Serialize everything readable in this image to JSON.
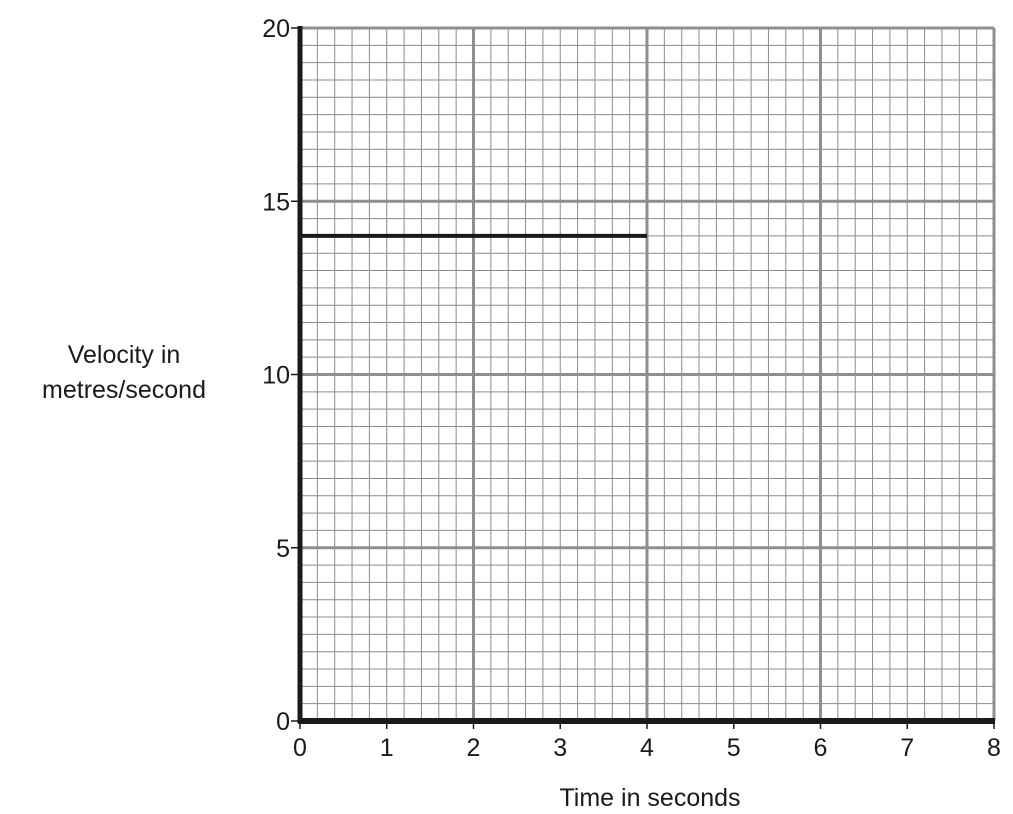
{
  "chart_data": {
    "type": "line",
    "title": "",
    "xlabel": "Time in seconds",
    "ylabel_lines": [
      "Velocity in",
      "metres/second"
    ],
    "xlim": [
      0,
      8
    ],
    "ylim": [
      0,
      20
    ],
    "x_ticks": [
      0,
      1,
      2,
      3,
      4,
      5,
      6,
      7,
      8
    ],
    "y_ticks": [
      0,
      5,
      10,
      15,
      20
    ],
    "grid": true,
    "series": [
      {
        "x": [
          0,
          4
        ],
        "y": [
          14,
          14
        ]
      }
    ]
  }
}
